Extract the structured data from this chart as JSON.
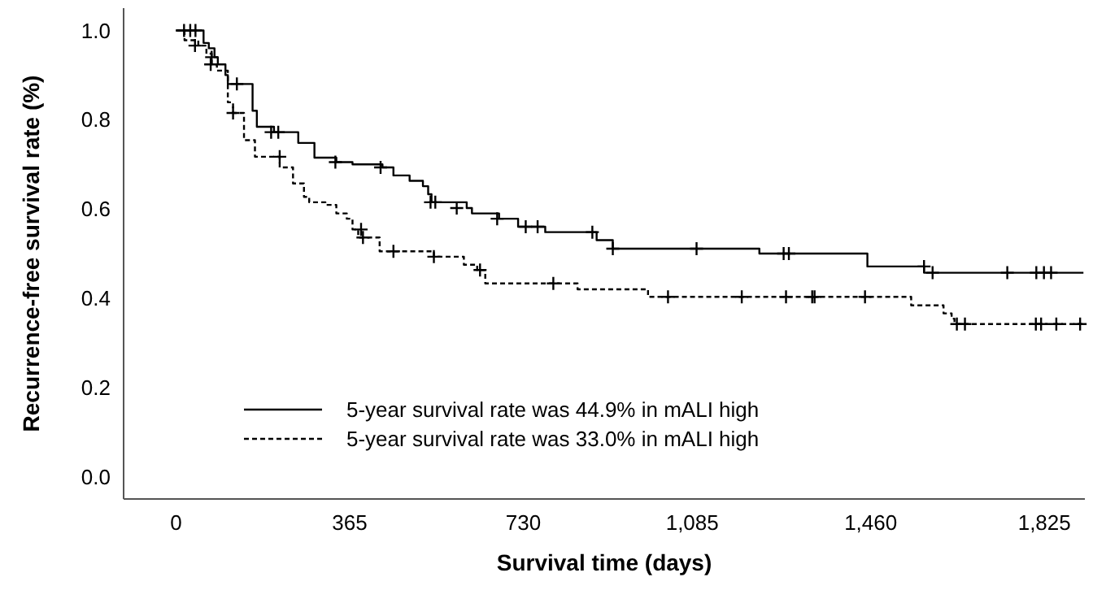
{
  "chart_data": {
    "type": "step",
    "xlabel": "Survival time (days)",
    "ylabel": "Recurrence-free survival rate (%)",
    "xlim": [
      -110,
      1910
    ],
    "ylim": [
      -0.05,
      1.05
    ],
    "xticks": [
      0,
      365,
      730,
      {
        "value": 1085,
        "label": "1,085"
      },
      {
        "value": 1460,
        "label": "1,460"
      },
      {
        "value": 1825,
        "label": "1,825"
      }
    ],
    "yticks": [
      {
        "value": 0,
        "label": "0.0"
      },
      {
        "value": 0.2,
        "label": "0.2"
      },
      {
        "value": 0.4,
        "label": "0.4"
      },
      {
        "value": 0.6,
        "label": "0.6"
      },
      {
        "value": 0.8,
        "label": "0.8"
      },
      {
        "value": 1,
        "label": "1.0"
      }
    ],
    "grid": false,
    "legend": "bottom left",
    "series": [
      {
        "name": "5-year survival rate was 44.9% in mALI high",
        "color": "#000000",
        "line_style": "solid",
        "x": [
          0,
          58,
          69,
          81,
          88,
          104,
          109,
          161,
          170,
          206,
          257,
          291,
          337,
          371,
          434,
          457,
          491,
          519,
          530,
          537,
          611,
          622,
          679,
          719,
          776,
          884,
          918,
          1226,
          1453,
          1572,
          1907
        ],
        "values": [
          1.0,
          0.972,
          0.96,
          0.94,
          0.924,
          0.9,
          0.88,
          0.82,
          0.784,
          0.772,
          0.748,
          0.715,
          0.705,
          0.7,
          0.693,
          0.675,
          0.663,
          0.651,
          0.633,
          0.615,
          0.602,
          0.59,
          0.578,
          0.56,
          0.548,
          0.53,
          0.511,
          0.5,
          0.471,
          0.457,
          0.457
        ]
      },
      {
        "name": "5-year survival rate was 33.0% in mALI high",
        "color": "#000000",
        "line_style": "dashed",
        "x": [
          0,
          18,
          47,
          64,
          75,
          86,
          109,
          120,
          143,
          166,
          218,
          246,
          269,
          280,
          314,
          337,
          359,
          371,
          383,
          428,
          542,
          605,
          633,
          650,
          844,
          992,
          1545,
          1613,
          1630,
          1636,
          1907
        ],
        "values": [
          1.0,
          0.978,
          0.966,
          0.948,
          0.924,
          0.91,
          0.839,
          0.815,
          0.754,
          0.717,
          0.693,
          0.657,
          0.627,
          0.615,
          0.609,
          0.59,
          0.578,
          0.554,
          0.536,
          0.505,
          0.493,
          0.475,
          0.463,
          0.433,
          0.42,
          0.403,
          0.384,
          0.366,
          0.354,
          0.342,
          0.342
        ]
      },
      {
        "type": "scatter",
        "marker": "cross",
        "color": "#000000",
        "x": [
          17,
          30,
          41,
          75,
          128,
          200,
          215,
          335,
          430,
          535,
          545,
          590,
          675,
          735,
          760,
          875,
          918,
          1094,
          1277,
          1288,
          1572,
          1590,
          1747,
          1808,
          1824,
          1839
        ],
        "values": [
          1.0,
          1.0,
          1.0,
          0.94,
          0.88,
          0.772,
          0.772,
          0.705,
          0.693,
          0.615,
          0.615,
          0.602,
          0.578,
          0.56,
          0.56,
          0.548,
          0.511,
          0.511,
          0.5,
          0.5,
          0.471,
          0.457,
          0.457,
          0.457,
          0.457,
          0.457
        ]
      },
      {
        "type": "scatter",
        "marker": "cross",
        "color": "#000000",
        "x": [
          40,
          73,
          120,
          218,
          389,
          393,
          457,
          542,
          639,
          793,
          1034,
          1189,
          1282,
          1337,
          1342,
          1448,
          1641,
          1658,
          1807,
          1818,
          1850,
          1900
        ],
        "values": [
          0.966,
          0.924,
          0.815,
          0.717,
          0.554,
          0.536,
          0.505,
          0.493,
          0.463,
          0.433,
          0.403,
          0.403,
          0.403,
          0.403,
          0.403,
          0.403,
          0.342,
          0.342,
          0.342,
          0.342,
          0.342,
          0.342
        ]
      }
    ]
  }
}
